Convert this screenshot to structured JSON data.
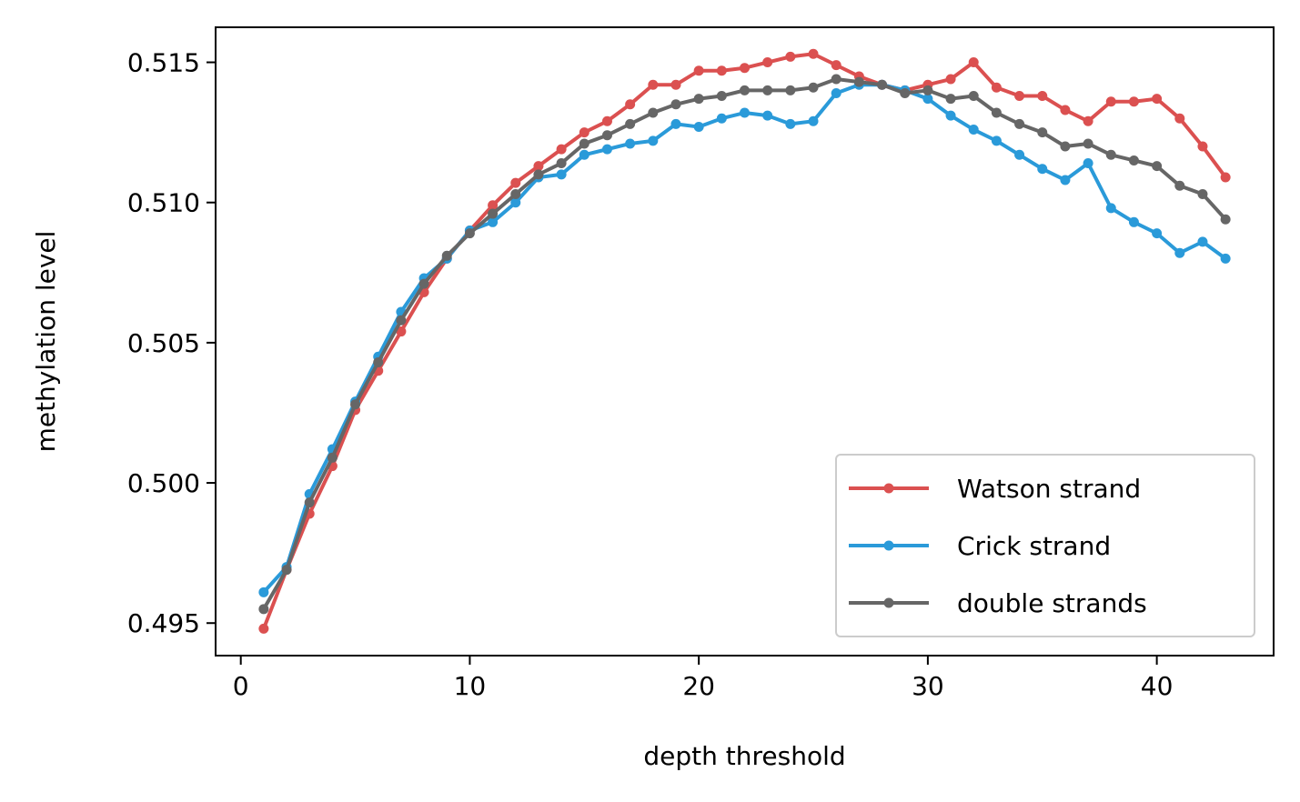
{
  "chart_data": {
    "type": "line",
    "xlabel": "depth threshold",
    "ylabel": "methylation level",
    "xlim": [
      -1.1,
      45.1
    ],
    "ylim": [
      0.49384,
      0.51625
    ],
    "xticks": [
      0,
      10,
      20,
      30,
      40
    ],
    "xtick_labels": [
      "0",
      "10",
      "20",
      "30",
      "40"
    ],
    "yticks": [
      0.495,
      0.5,
      0.505,
      0.51,
      0.515
    ],
    "ytick_labels": [
      "0.495",
      "0.500",
      "0.505",
      "0.510",
      "0.515"
    ],
    "grid": false,
    "legend_position": "lower-right",
    "x": [
      1,
      2,
      3,
      4,
      5,
      6,
      7,
      8,
      9,
      10,
      11,
      12,
      13,
      14,
      15,
      16,
      17,
      18,
      19,
      20,
      21,
      22,
      23,
      24,
      25,
      26,
      27,
      28,
      29,
      30,
      31,
      32,
      33,
      34,
      35,
      36,
      37,
      38,
      39,
      40,
      41,
      42,
      43
    ],
    "series": [
      {
        "name": "Watson strand",
        "color": "#db5050",
        "values": [
          0.4948,
          0.4969,
          0.4989,
          0.5006,
          0.5026,
          0.504,
          0.5054,
          0.5068,
          0.508,
          0.509,
          0.5099,
          0.5107,
          0.5113,
          0.5119,
          0.5125,
          0.5129,
          0.5135,
          0.5142,
          0.5142,
          0.5147,
          0.5147,
          0.5148,
          0.515,
          0.5152,
          0.5153,
          0.5149,
          0.5145,
          0.5142,
          0.514,
          0.5142,
          0.5144,
          0.515,
          0.5141,
          0.5138,
          0.5138,
          0.5133,
          0.5129,
          0.5136,
          0.5136,
          0.5137,
          0.513,
          0.512,
          0.5109
        ]
      },
      {
        "name": "Crick strand",
        "color": "#2a9ad9",
        "values": [
          0.4961,
          0.497,
          0.4996,
          0.5012,
          0.5029,
          0.5045,
          0.5061,
          0.5073,
          0.508,
          0.509,
          0.5093,
          0.51,
          0.5109,
          0.511,
          0.5117,
          0.5119,
          0.5121,
          0.5122,
          0.5128,
          0.5127,
          0.513,
          0.5132,
          0.5131,
          0.5128,
          0.5129,
          0.5139,
          0.5142,
          0.5142,
          0.514,
          0.5137,
          0.5131,
          0.5126,
          0.5122,
          0.5117,
          0.5112,
          0.5108,
          0.5114,
          0.5098,
          0.5093,
          0.5089,
          0.5082,
          0.5086,
          0.508
        ]
      },
      {
        "name": "double strands",
        "color": "#666666",
        "values": [
          0.4955,
          0.4969,
          0.4993,
          0.5009,
          0.5028,
          0.5043,
          0.5058,
          0.5071,
          0.5081,
          0.5089,
          0.5096,
          0.5103,
          0.511,
          0.5114,
          0.5121,
          0.5124,
          0.5128,
          0.5132,
          0.5135,
          0.5137,
          0.5138,
          0.514,
          0.514,
          0.514,
          0.5141,
          0.5144,
          0.5143,
          0.5142,
          0.5139,
          0.514,
          0.5137,
          0.5138,
          0.5132,
          0.5128,
          0.5125,
          0.512,
          0.5121,
          0.5117,
          0.5115,
          0.5113,
          0.5106,
          0.5103,
          0.5094
        ]
      }
    ]
  }
}
